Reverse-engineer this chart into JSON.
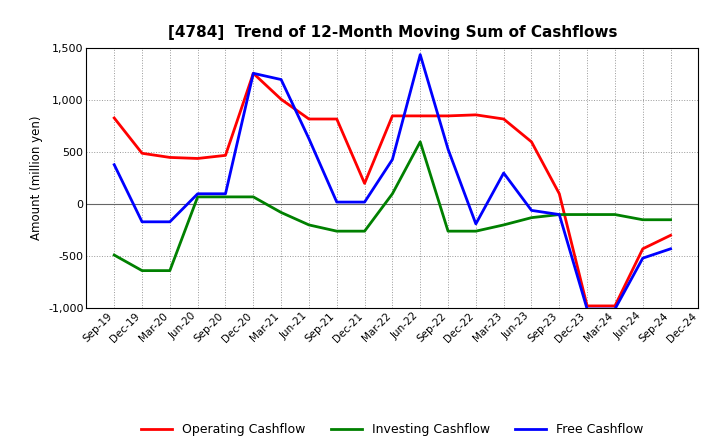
{
  "title": "[4784]  Trend of 12-Month Moving Sum of Cashflows",
  "ylabel": "Amount (million yen)",
  "x_labels": [
    "Sep-19",
    "Dec-19",
    "Mar-20",
    "Jun-20",
    "Sep-20",
    "Dec-20",
    "Mar-21",
    "Jun-21",
    "Sep-21",
    "Dec-21",
    "Mar-22",
    "Jun-22",
    "Sep-22",
    "Dec-22",
    "Mar-23",
    "Jun-23",
    "Sep-23",
    "Dec-23",
    "Mar-24",
    "Jun-24",
    "Sep-24",
    "Dec-24"
  ],
  "operating": [
    830,
    490,
    450,
    440,
    470,
    1260,
    1010,
    820,
    820,
    200,
    850,
    850,
    850,
    860,
    820,
    600,
    100,
    -980,
    -980,
    -430,
    -300,
    null
  ],
  "investing": [
    -490,
    -640,
    -640,
    70,
    70,
    70,
    -80,
    -200,
    -260,
    -260,
    100,
    600,
    -260,
    -260,
    -200,
    -130,
    -100,
    -100,
    -100,
    -150,
    -150,
    null
  ],
  "free": [
    380,
    -170,
    -170,
    100,
    100,
    1260,
    1200,
    630,
    20,
    20,
    430,
    1440,
    530,
    -190,
    300,
    -60,
    -100,
    -1010,
    -1010,
    -520,
    -430,
    null
  ],
  "ylim": [
    -1000,
    1500
  ],
  "yticks": [
    -1000,
    -500,
    0,
    500,
    1000,
    1500
  ],
  "colors": {
    "operating": "#ff0000",
    "investing": "#008000",
    "free": "#0000ff"
  },
  "background_color": "#ffffff",
  "grid_color": "#999999"
}
